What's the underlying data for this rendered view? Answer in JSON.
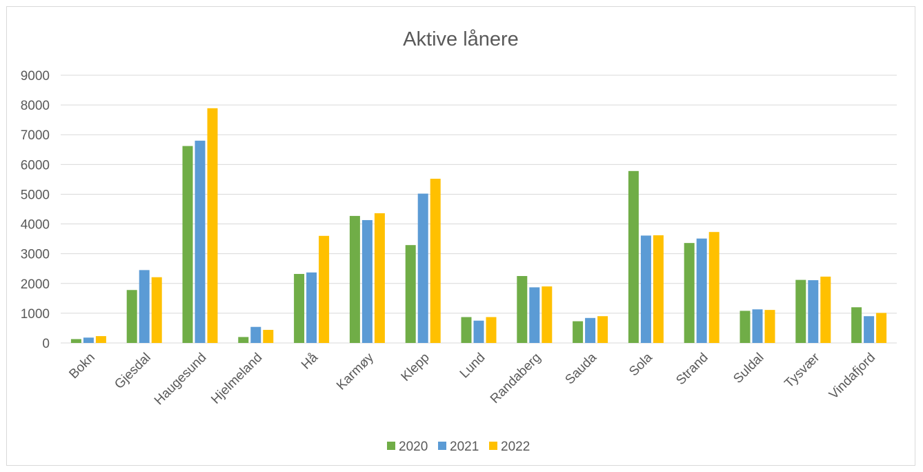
{
  "chart_data": {
    "type": "bar",
    "title": "Aktive lånere",
    "xlabel": "",
    "ylabel": "",
    "categories": [
      "Bokn",
      "Gjesdal",
      "Haugesund",
      "Hjelmeland",
      "Hå",
      "Karmøy",
      "Klepp",
      "Lund",
      "Randaberg",
      "Sauda",
      "Sola",
      "Strand",
      "Suldal",
      "Tysvær",
      "Vindafjord"
    ],
    "series": [
      {
        "name": "2020",
        "color": "#70ad47",
        "values": [
          130,
          1780,
          6620,
          200,
          2320,
          4270,
          3290,
          870,
          2250,
          730,
          5780,
          3360,
          1080,
          2120,
          1200
        ]
      },
      {
        "name": "2021",
        "color": "#5b9bd5",
        "values": [
          180,
          2450,
          6800,
          540,
          2370,
          4130,
          5020,
          750,
          1870,
          840,
          3610,
          3510,
          1130,
          2110,
          900
        ]
      },
      {
        "name": "2022",
        "color": "#ffc000",
        "values": [
          230,
          2210,
          7890,
          440,
          3600,
          4360,
          5520,
          870,
          1900,
          900,
          3620,
          3730,
          1110,
          2230,
          1010
        ]
      }
    ],
    "ylim": [
      0,
      9000
    ],
    "yticks": [
      0,
      1000,
      2000,
      3000,
      4000,
      5000,
      6000,
      7000,
      8000,
      9000
    ],
    "grid": true,
    "legend_position": "bottom"
  }
}
